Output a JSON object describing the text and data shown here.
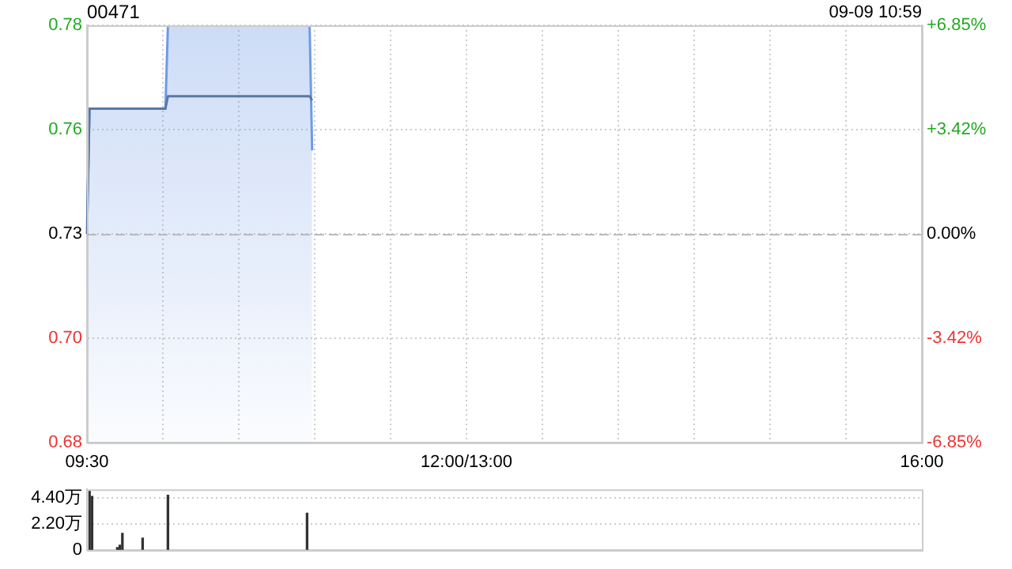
{
  "chart_data": [
    {
      "type": "line",
      "title": "00471",
      "annotations": [
        "09-09 10:59"
      ],
      "categories": [
        "09:30",
        null,
        null,
        null,
        null,
        null,
        null,
        null,
        null,
        null,
        null,
        null,
        null,
        null,
        null,
        null,
        null,
        null,
        null,
        null,
        null,
        null,
        null,
        null,
        null,
        null,
        null,
        null,
        null,
        null,
        null,
        null,
        null,
        null,
        null,
        null,
        null,
        null,
        null,
        null,
        null,
        null,
        null,
        null,
        null,
        null,
        null,
        null,
        null,
        null,
        null,
        null,
        null,
        null,
        null,
        null,
        null,
        null,
        null,
        null,
        null,
        null,
        null,
        null,
        null,
        null,
        null,
        null,
        null,
        null,
        null,
        null,
        null,
        null,
        null,
        null,
        null,
        null,
        null,
        null,
        null,
        null,
        null,
        null,
        null,
        null,
        null,
        null,
        null,
        null,
        null,
        null,
        null,
        null,
        null,
        null,
        null,
        null,
        null,
        null,
        null,
        null,
        null,
        null,
        null,
        null,
        null,
        null,
        null,
        null,
        null,
        null,
        null,
        null,
        null,
        null,
        null,
        null,
        null,
        null,
        null,
        null,
        null,
        null,
        null,
        null,
        null,
        null,
        null,
        null,
        null,
        null,
        null,
        null,
        null,
        null,
        null,
        null,
        null,
        null,
        null,
        null,
        null,
        null,
        null,
        null,
        null,
        null,
        null,
        null,
        "12:00/13:00",
        null,
        null,
        null,
        null,
        null,
        null,
        null,
        null,
        null,
        null,
        null,
        null,
        null,
        null,
        null,
        null,
        null,
        null,
        null,
        null,
        null,
        null,
        null,
        null,
        null,
        null,
        null,
        null,
        null,
        null,
        null,
        null,
        null,
        null,
        null,
        null,
        null,
        null,
        null,
        null,
        null,
        null,
        null,
        null,
        null,
        null,
        null,
        null,
        null,
        null,
        null,
        null,
        null,
        null,
        null,
        null,
        null,
        null,
        null,
        null,
        null,
        null,
        null,
        null,
        null,
        null,
        null,
        null,
        null,
        null,
        null,
        null,
        null,
        null,
        null,
        null,
        null,
        null,
        null,
        null,
        null,
        null,
        null,
        null,
        null,
        null,
        null,
        null,
        null,
        null,
        null,
        null,
        null,
        null,
        null,
        null,
        null,
        null,
        null,
        null,
        null,
        null,
        null,
        null,
        null,
        null,
        null,
        null,
        null,
        null,
        null,
        null,
        null,
        null,
        null,
        null,
        null,
        null,
        null,
        null,
        null,
        null,
        null,
        null,
        null,
        null,
        null,
        null,
        null,
        null,
        null,
        null,
        null,
        null,
        null,
        null,
        null,
        null,
        null,
        null,
        null,
        null,
        null,
        null,
        null,
        null,
        null,
        null,
        null,
        null,
        null,
        null,
        null,
        null,
        null,
        null,
        null,
        null,
        null,
        null,
        null,
        null,
        null,
        null,
        null,
        null,
        null,
        null,
        null,
        null,
        null,
        null,
        null,
        null,
        null,
        null,
        null,
        null,
        null,
        "16:00"
      ],
      "ylim": [
        0.68,
        0.78
      ],
      "yticks": [
        0.68,
        {
          "value": 0.705,
          "label": "0.70"
        },
        0.73,
        {
          "value": 0.755,
          "label": "0.76"
        },
        0.78
      ],
      "y2lim": [
        -6.85,
        6.85
      ],
      "y2ticks": [
        {
          "value": -6.85,
          "label": "-6.85%"
        },
        {
          "value": -3.42,
          "label": "-3.42%"
        },
        {
          "value": 0,
          "label": "0.00%"
        },
        {
          "value": 3.42,
          "label": "+3.42%"
        },
        {
          "value": 6.85,
          "label": "+6.85%"
        }
      ],
      "ref_lines": [
        {
          "axis": "y",
          "value": 0.73,
          "color": "#bbbbbb",
          "line_style": "dashed"
        }
      ],
      "grid": true,
      "marker": "none",
      "series": [
        {
          "type": "area",
          "color": "#6f9ae6",
          "values": [
            0.73,
            0.76,
            0.76,
            0.76,
            0.76,
            0.76,
            0.76,
            0.76,
            0.76,
            0.76,
            0.76,
            0.76,
            0.76,
            0.76,
            0.76,
            0.76,
            0.76,
            0.76,
            0.76,
            0.76,
            0.76,
            0.76,
            0.76,
            0.76,
            0.76,
            0.76,
            0.76,
            0.76,
            0.76,
            0.76,
            0.76,
            0.76,
            0.78,
            0.78,
            0.78,
            0.78,
            0.78,
            0.78,
            0.78,
            0.78,
            0.78,
            0.78,
            0.78,
            0.78,
            0.78,
            0.78,
            0.78,
            0.78,
            0.78,
            0.78,
            0.78,
            0.78,
            0.78,
            0.78,
            0.78,
            0.78,
            0.78,
            0.78,
            0.78,
            0.78,
            0.78,
            0.78,
            0.78,
            0.78,
            0.78,
            0.78,
            0.78,
            0.78,
            0.78,
            0.78,
            0.78,
            0.78,
            0.78,
            0.78,
            0.78,
            0.78,
            0.78,
            0.78,
            0.78,
            0.78,
            0.78,
            0.78,
            0.78,
            0.78,
            0.78,
            0.78,
            0.78,
            0.78,
            0.78,
            0.75,
            null,
            null,
            null,
            null,
            null,
            null,
            null,
            null,
            null,
            null,
            null,
            null,
            null,
            null,
            null,
            null,
            null,
            null,
            null,
            null,
            null,
            null,
            null,
            null,
            null,
            null,
            null,
            null,
            null,
            null,
            null,
            null,
            null,
            null,
            null,
            null,
            null,
            null,
            null,
            null,
            null,
            null,
            null,
            null,
            null,
            null,
            null,
            null,
            null,
            null,
            null,
            null,
            null,
            null,
            null,
            null,
            null,
            null,
            null,
            null,
            null,
            null,
            null,
            null,
            null,
            null,
            null,
            null,
            null,
            null,
            null,
            null,
            null,
            null,
            null,
            null,
            null,
            null,
            null,
            null,
            null,
            null,
            null,
            null,
            null,
            null,
            null,
            null,
            null,
            null,
            null,
            null,
            null,
            null,
            null,
            null,
            null,
            null,
            null,
            null,
            null,
            null,
            null,
            null,
            null,
            null,
            null,
            null,
            null,
            null,
            null,
            null,
            null,
            null,
            null,
            null,
            null,
            null,
            null,
            null,
            null,
            null,
            null,
            null,
            null,
            null,
            null,
            null,
            null,
            null,
            null,
            null,
            null,
            null,
            null,
            null,
            null,
            null,
            null,
            null,
            null,
            null,
            null,
            null,
            null,
            null,
            null,
            null,
            null,
            null,
            null,
            null,
            null,
            null,
            null,
            null,
            null,
            null,
            null,
            null,
            null,
            null,
            null,
            null,
            null,
            null,
            null,
            null,
            null,
            null,
            null,
            null,
            null,
            null,
            null,
            null,
            null,
            null,
            null,
            null,
            null,
            null,
            null,
            null,
            null,
            null,
            null,
            null,
            null,
            null,
            null,
            null,
            null,
            null,
            null,
            null,
            null,
            null,
            null,
            null,
            null,
            null,
            null,
            null,
            null,
            null,
            null,
            null,
            null,
            null,
            null,
            null,
            null,
            null,
            null,
            null,
            null,
            null,
            null,
            null,
            null,
            null,
            null,
            null,
            null,
            null,
            null,
            null,
            null,
            null,
            null,
            null,
            null,
            null,
            null,
            null,
            null,
            null,
            null,
            null,
            null
          ]
        },
        {
          "type": "line",
          "color": "#5a78a8",
          "values": [
            0.73,
            0.76,
            0.76,
            0.76,
            0.76,
            0.76,
            0.76,
            0.76,
            0.76,
            0.76,
            0.76,
            0.76,
            0.76,
            0.76,
            0.76,
            0.76,
            0.76,
            0.76,
            0.76,
            0.76,
            0.76,
            0.76,
            0.76,
            0.76,
            0.76,
            0.76,
            0.76,
            0.76,
            0.76,
            0.76,
            0.76,
            0.76,
            0.763,
            0.763,
            0.763,
            0.763,
            0.763,
            0.763,
            0.763,
            0.763,
            0.763,
            0.763,
            0.763,
            0.763,
            0.763,
            0.763,
            0.763,
            0.763,
            0.763,
            0.763,
            0.763,
            0.763,
            0.763,
            0.763,
            0.763,
            0.763,
            0.763,
            0.763,
            0.763,
            0.763,
            0.763,
            0.763,
            0.763,
            0.763,
            0.763,
            0.763,
            0.763,
            0.763,
            0.763,
            0.763,
            0.763,
            0.763,
            0.763,
            0.763,
            0.763,
            0.763,
            0.763,
            0.763,
            0.763,
            0.763,
            0.763,
            0.763,
            0.763,
            0.763,
            0.763,
            0.763,
            0.763,
            0.763,
            0.763,
            0.762,
            null,
            null,
            null,
            null,
            null,
            null,
            null,
            null,
            null,
            null,
            null,
            null,
            null,
            null,
            null,
            null,
            null,
            null,
            null,
            null,
            null,
            null,
            null,
            null,
            null,
            null,
            null,
            null,
            null,
            null,
            null,
            null,
            null,
            null,
            null,
            null,
            null,
            null,
            null,
            null,
            null,
            null,
            null,
            null,
            null,
            null,
            null,
            null,
            null,
            null,
            null,
            null,
            null,
            null,
            null,
            null,
            null,
            null,
            null,
            null,
            null,
            null,
            null,
            null,
            null,
            null,
            null,
            null,
            null,
            null,
            null,
            null,
            null,
            null,
            null,
            null,
            null,
            null,
            null,
            null,
            null,
            null,
            null,
            null,
            null,
            null,
            null,
            null,
            null,
            null,
            null,
            null,
            null,
            null,
            null,
            null,
            null,
            null,
            null,
            null,
            null,
            null,
            null,
            null,
            null,
            null,
            null,
            null,
            null,
            null,
            null,
            null,
            null,
            null,
            null,
            null,
            null,
            null,
            null,
            null,
            null,
            null,
            null,
            null,
            null,
            null,
            null,
            null,
            null,
            null,
            null,
            null,
            null,
            null,
            null,
            null,
            null,
            null,
            null,
            null,
            null,
            null,
            null,
            null,
            null,
            null,
            null,
            null,
            null,
            null,
            null,
            null,
            null,
            null,
            null,
            null,
            null,
            null,
            null,
            null,
            null,
            null,
            null,
            null,
            null,
            null,
            null,
            null,
            null,
            null,
            null,
            null,
            null,
            null,
            null,
            null,
            null,
            null,
            null,
            null,
            null,
            null,
            null,
            null,
            null,
            null,
            null,
            null,
            null,
            null,
            null,
            null,
            null,
            null,
            null,
            null,
            null,
            null,
            null,
            null,
            null,
            null,
            null,
            null,
            null,
            null,
            null,
            null,
            null,
            null,
            null,
            null,
            null,
            null,
            null,
            null,
            null,
            null,
            null,
            null,
            null,
            null,
            null,
            null,
            null,
            null,
            null,
            null,
            null,
            null,
            null,
            null,
            null,
            null,
            null,
            null,
            null,
            null,
            null,
            null,
            null
          ]
        }
      ]
    },
    {
      "type": "bar",
      "ylim": [
        0,
        5.1
      ],
      "yticks": [
        0,
        {
          "value": 2.2,
          "label": "2.20万"
        },
        {
          "value": 4.4,
          "label": "4.40万"
        }
      ],
      "tick_labels": "y",
      "grid": "y",
      "color": "#333333",
      "categories": [
        null,
        null,
        null,
        null,
        null,
        null,
        null,
        null,
        null,
        null,
        null,
        null,
        null,
        null,
        null,
        null,
        null,
        null,
        null,
        null,
        null,
        null,
        null,
        null,
        null,
        null,
        null,
        null,
        null,
        null,
        null,
        null,
        null,
        null,
        null,
        null,
        null,
        null,
        null,
        null,
        null,
        null,
        null,
        null,
        null,
        null,
        null,
        null,
        null,
        null,
        null,
        null,
        null,
        null,
        null,
        null,
        null,
        null,
        null,
        null,
        null,
        null,
        null,
        null,
        null,
        null,
        null,
        null,
        null,
        null,
        null,
        null,
        null,
        null,
        null,
        null,
        null,
        null,
        null,
        null,
        null,
        null,
        null,
        null,
        null,
        null,
        null,
        null,
        null,
        null,
        null,
        null,
        null,
        null,
        null,
        null,
        null,
        null,
        null,
        null,
        null,
        null,
        null,
        null,
        null,
        null,
        null,
        null,
        null,
        null,
        null,
        null,
        null,
        null,
        null,
        null,
        null,
        null,
        null,
        null,
        null,
        null,
        null,
        null,
        null,
        null,
        null,
        null,
        null,
        null,
        null,
        null,
        null,
        null,
        null,
        null,
        null,
        null,
        null,
        null,
        null,
        null,
        null,
        null,
        null,
        null,
        null,
        null,
        null,
        null,
        null,
        null,
        null,
        null,
        null,
        null,
        null,
        null,
        null,
        null,
        null,
        null,
        null,
        null,
        null,
        null,
        null,
        null,
        null,
        null,
        null,
        null,
        null,
        null,
        null,
        null,
        null,
        null,
        null,
        null,
        null,
        null,
        null,
        null,
        null,
        null,
        null,
        null,
        null,
        null,
        null,
        null,
        null,
        null,
        null,
        null,
        null,
        null,
        null,
        null,
        null,
        null,
        null,
        null,
        null,
        null,
        null,
        null,
        null,
        null,
        null,
        null,
        null,
        null,
        null,
        null,
        null,
        null,
        null,
        null,
        null,
        null,
        null,
        null,
        null,
        null,
        null,
        null,
        null,
        null,
        null,
        null,
        null,
        null,
        null,
        null,
        null,
        null,
        null,
        null,
        null,
        null,
        null,
        null,
        null,
        null,
        null,
        null,
        null,
        null,
        null,
        null,
        null,
        null,
        null,
        null,
        null,
        null,
        null,
        null,
        null,
        null,
        null,
        null,
        null,
        null,
        null,
        null,
        null,
        null,
        null,
        null,
        null,
        null,
        null,
        null,
        null,
        null,
        null,
        null,
        null,
        null,
        null,
        null,
        null,
        null,
        null,
        null,
        null,
        null,
        null,
        null,
        null,
        null,
        null,
        null,
        null,
        null,
        null,
        null,
        null,
        null,
        null,
        null,
        null,
        null,
        null,
        null,
        null,
        null,
        null,
        null,
        null,
        null,
        null,
        null,
        null,
        null,
        null,
        null,
        null,
        null,
        null,
        null,
        null,
        null,
        null,
        null,
        null,
        null,
        null
      ],
      "values": [
        null,
        5.0,
        4.5,
        null,
        null,
        null,
        null,
        null,
        null,
        null,
        null,
        null,
        0.2,
        0.4,
        1.4,
        null,
        null,
        null,
        null,
        null,
        null,
        null,
        1.0,
        null,
        null,
        null,
        null,
        null,
        null,
        null,
        null,
        null,
        4.6,
        null,
        null,
        null,
        null,
        null,
        null,
        null,
        null,
        null,
        null,
        null,
        null,
        null,
        null,
        null,
        null,
        null,
        null,
        null,
        null,
        null,
        null,
        null,
        null,
        null,
        null,
        null,
        null,
        null,
        null,
        null,
        null,
        null,
        null,
        null,
        null,
        null,
        null,
        null,
        null,
        null,
        null,
        null,
        null,
        null,
        null,
        null,
        null,
        null,
        null,
        null,
        null,
        null,
        null,
        3.1,
        null,
        null,
        null,
        null,
        null,
        null,
        null,
        null,
        null,
        null,
        null,
        null,
        null,
        null,
        null,
        null,
        null,
        null,
        null,
        null,
        null,
        null,
        null,
        null,
        null,
        null,
        null,
        null,
        null,
        null,
        null,
        null,
        null,
        null,
        null,
        null,
        null,
        null,
        null,
        null,
        null,
        null,
        null,
        null,
        null,
        null,
        null,
        null,
        null,
        null,
        null,
        null,
        null,
        null,
        null,
        null,
        null,
        null,
        null,
        null,
        null,
        null,
        null,
        null,
        null,
        null,
        null,
        null,
        null,
        null,
        null,
        null,
        null,
        null,
        null,
        null,
        null,
        null,
        null,
        null,
        null,
        null,
        null,
        null,
        null,
        null,
        null,
        null,
        null,
        null,
        null,
        null,
        null,
        null,
        null,
        null,
        null,
        null,
        null,
        null,
        null,
        null,
        null,
        null,
        null,
        null,
        null,
        null,
        null,
        null,
        null,
        null,
        null,
        null,
        null,
        null,
        null,
        null,
        null,
        null,
        null,
        null,
        null,
        null,
        null,
        null,
        null,
        null,
        null,
        null,
        null,
        null,
        null,
        null,
        null,
        null,
        null,
        null,
        null,
        null,
        null,
        null,
        null,
        null,
        null,
        null,
        null,
        null,
        null,
        null,
        null,
        null,
        null,
        null,
        null,
        null,
        null,
        null,
        null,
        null,
        null,
        null,
        null,
        null,
        null,
        null,
        null,
        null,
        null,
        null,
        null,
        null,
        null,
        null,
        null,
        null,
        null,
        null,
        null,
        null,
        null,
        null,
        null,
        null,
        null,
        null,
        null,
        null,
        null,
        null,
        null,
        null,
        null,
        null,
        null,
        null,
        null,
        null,
        null,
        null,
        null,
        null,
        null,
        null,
        null,
        null,
        null,
        null,
        null,
        null,
        null,
        null,
        null,
        null,
        null,
        null,
        null,
        null,
        null,
        null,
        null,
        null,
        null,
        null,
        null,
        null,
        null,
        null,
        null,
        null,
        null,
        null,
        null,
        null,
        null,
        null,
        null,
        null,
        null,
        null,
        null,
        null,
        null
      ]
    }
  ]
}
